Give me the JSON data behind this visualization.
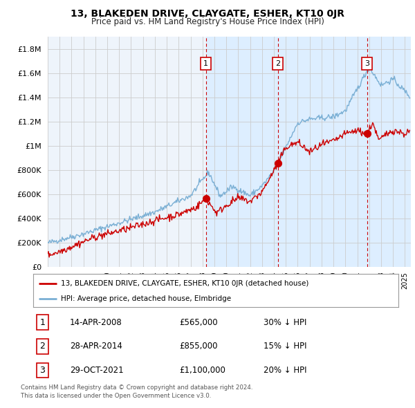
{
  "title": "13, BLAKEDEN DRIVE, CLAYGATE, ESHER, KT10 0JR",
  "subtitle": "Price paid vs. HM Land Registry's House Price Index (HPI)",
  "ytick_values": [
    0,
    200000,
    400000,
    600000,
    800000,
    1000000,
    1200000,
    1400000,
    1600000,
    1800000
  ],
  "ylim": [
    0,
    1900000
  ],
  "xlim_start": 1995.0,
  "xlim_end": 2025.5,
  "hpi_color": "#7aafd4",
  "price_color": "#cc0000",
  "vline_color": "#cc0000",
  "shade_color": "#ddeeff",
  "transactions": [
    {
      "year": 2008.29,
      "price": 565000,
      "label": "1"
    },
    {
      "year": 2014.33,
      "price": 855000,
      "label": "2"
    },
    {
      "year": 2021.83,
      "price": 1100000,
      "label": "3"
    }
  ],
  "transaction_details": [
    {
      "label": "1",
      "date": "14-APR-2008",
      "price": "£565,000",
      "hpi_diff": "30% ↓ HPI"
    },
    {
      "label": "2",
      "date": "28-APR-2014",
      "price": "£855,000",
      "hpi_diff": "15% ↓ HPI"
    },
    {
      "label": "3",
      "date": "29-OCT-2021",
      "price": "£1,100,000",
      "hpi_diff": "20% ↓ HPI"
    }
  ],
  "legend_property": "13, BLAKEDEN DRIVE, CLAYGATE, ESHER, KT10 0JR (detached house)",
  "legend_hpi": "HPI: Average price, detached house, Elmbridge",
  "footer1": "Contains HM Land Registry data © Crown copyright and database right 2024.",
  "footer2": "This data is licensed under the Open Government Licence v3.0.",
  "background_color": "#ffffff",
  "grid_color": "#cccccc",
  "plot_bg_color": "#eef4fb"
}
